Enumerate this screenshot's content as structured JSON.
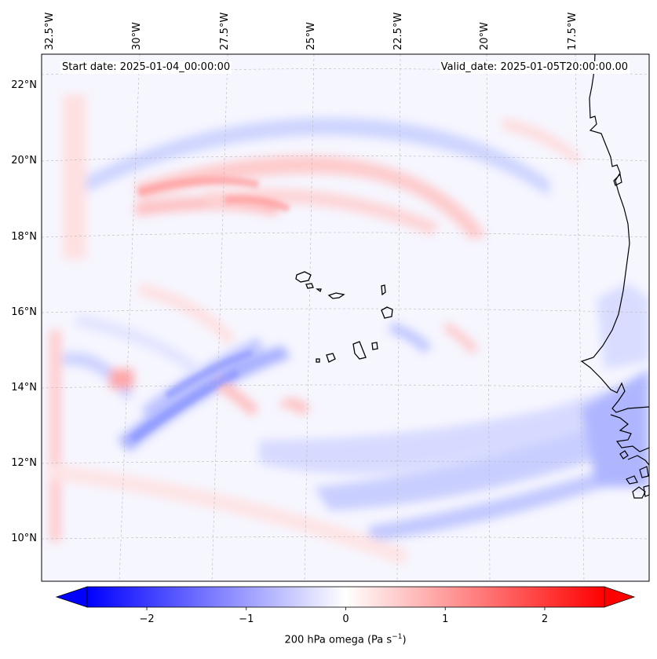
{
  "header": {
    "start_date": "Start date: 2025-01-04_00:00:00",
    "valid_date": "Valid_date: 2025-01-05T20:00:00.00"
  },
  "map": {
    "lon_labels": [
      "32.5°W",
      "30°W",
      "27.5°W",
      "25°W",
      "22.5°W",
      "20°W",
      "17.5°W"
    ],
    "lat_labels": [
      "22°N",
      "20°N",
      "18°N",
      "16°N",
      "14°N",
      "12°N",
      "10°N"
    ],
    "features": [
      "Cape Verde islands",
      "West African coastline"
    ]
  },
  "colorbar": {
    "label_text": "200 hPa omega (Pa s",
    "label_sup": "−1",
    "label_close": ")",
    "ticks": [
      "−2",
      "−1",
      "0",
      "1",
      "2"
    ],
    "tick_values": [
      -2,
      -1,
      0,
      1,
      2
    ],
    "range": [
      -2.6,
      2.6
    ],
    "colormap": "bwr",
    "color_low": "#0000ff",
    "color_mid": "#ffffff",
    "color_high": "#ff0000"
  }
}
